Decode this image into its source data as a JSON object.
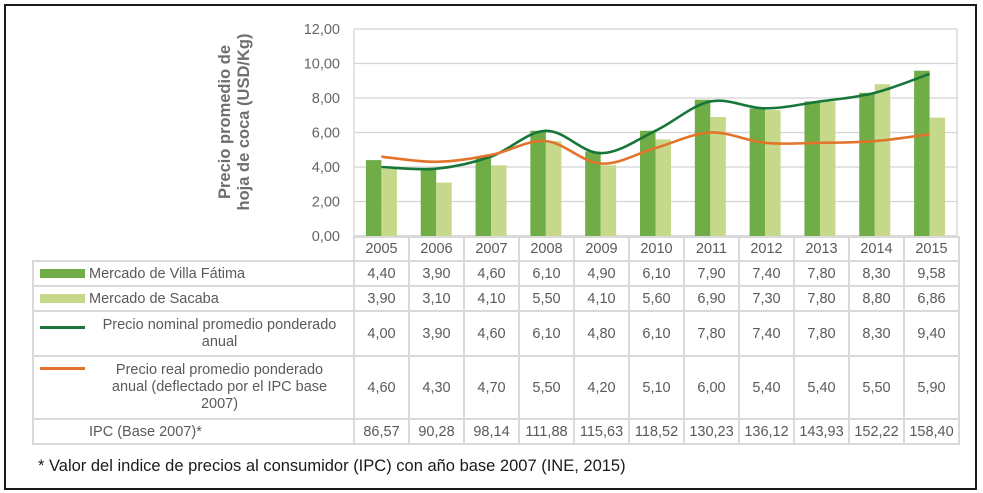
{
  "chart_data": {
    "type": "bar",
    "title": "",
    "xlabel": "",
    "ylabel": "Precio promedio de hoja de coca (USD/Kg)",
    "ylim": [
      0,
      12
    ],
    "yticks": [
      "0,00",
      "2,00",
      "4,00",
      "6,00",
      "8,00",
      "10,00",
      "12,00"
    ],
    "ytick_values": [
      0,
      2,
      4,
      6,
      8,
      10,
      12
    ],
    "grid": true,
    "legend": "data-table-left",
    "categories": [
      "2005",
      "2006",
      "2007",
      "2008",
      "2009",
      "2010",
      "2011",
      "2012",
      "2013",
      "2014",
      "2015"
    ],
    "series": [
      {
        "name": "Mercado de Villa Fátima",
        "kind": "bar",
        "color": "#70ad47",
        "values": [
          4.4,
          3.9,
          4.6,
          6.1,
          4.9,
          6.1,
          7.9,
          7.4,
          7.8,
          8.3,
          9.58
        ],
        "labels": [
          "4,40",
          "3,90",
          "4,60",
          "6,10",
          "4,90",
          "6,10",
          "7,90",
          "7,40",
          "7,80",
          "8,30",
          "9,58"
        ]
      },
      {
        "name": "Mercado de Sacaba",
        "kind": "bar",
        "color": "#c6d98b",
        "values": [
          3.9,
          3.1,
          4.1,
          5.5,
          4.1,
          5.6,
          6.9,
          7.3,
          7.8,
          8.8,
          6.86
        ],
        "labels": [
          "3,90",
          "3,10",
          "4,10",
          "5,50",
          "4,10",
          "5,60",
          "6,90",
          "7,30",
          "7,80",
          "8,80",
          "6,86"
        ]
      },
      {
        "name": "Precio nominal promedio ponderado anual",
        "kind": "line",
        "color": "#17773a",
        "values": [
          4.0,
          3.9,
          4.6,
          6.1,
          4.8,
          6.1,
          7.8,
          7.4,
          7.8,
          8.3,
          9.4
        ],
        "labels": [
          "4,00",
          "3,90",
          "4,60",
          "6,10",
          "4,80",
          "6,10",
          "7,80",
          "7,40",
          "7,80",
          "8,30",
          "9,40"
        ]
      },
      {
        "name": "Precio real promedio ponderado anual (deflectado por el IPC base 2007)",
        "kind": "line",
        "color": "#e2732a",
        "values": [
          4.6,
          4.3,
          4.7,
          5.5,
          4.2,
          5.1,
          6.0,
          5.4,
          5.4,
          5.5,
          5.9
        ],
        "labels": [
          "4,60",
          "4,30",
          "4,70",
          "5,50",
          "4,20",
          "5,10",
          "6,00",
          "5,40",
          "5,40",
          "5,50",
          "5,90"
        ]
      },
      {
        "name": "IPC (Base 2007)*",
        "kind": "table-only",
        "values": [
          86.57,
          90.28,
          98.14,
          111.88,
          115.63,
          118.52,
          130.23,
          136.12,
          143.93,
          152.22,
          158.4
        ],
        "labels": [
          "86,57",
          "90,28",
          "98,14",
          "111,88",
          "115,63",
          "118,52",
          "130,23",
          "136,12",
          "143,93",
          "152,22",
          "158,40"
        ]
      }
    ]
  },
  "ylabel_lines": [
    "Precio promedio de",
    "hoja de coca (USD/Kg)"
  ],
  "table": {
    "rows": [
      {
        "label": "Mercado de Villa Fátima"
      },
      {
        "label": "Mercado de Sacaba"
      },
      {
        "label_lines": [
          "Precio nominal promedio ponderado",
          "anual"
        ]
      },
      {
        "label_lines": [
          "Precio real promedio ponderado",
          "anual (deflectado por el IPC base",
          "2007)"
        ]
      },
      {
        "label": "IPC (Base 2007)*"
      }
    ]
  },
  "footnote": "* Valor del indice de precios al consumidor (IPC) con año base 2007 (INE, 2015)"
}
